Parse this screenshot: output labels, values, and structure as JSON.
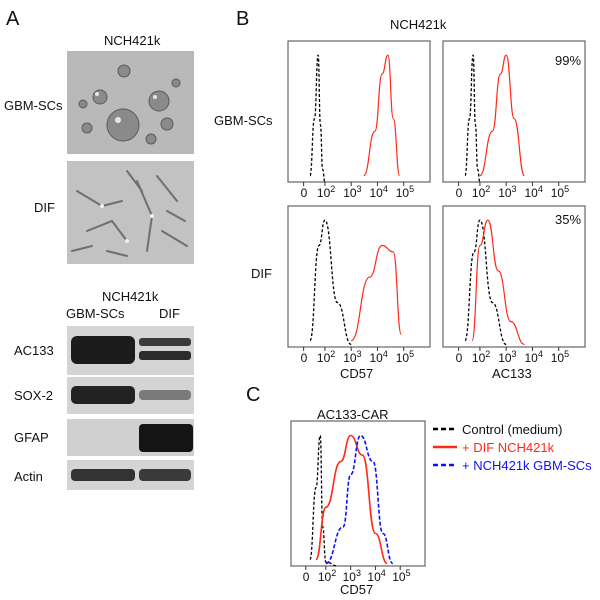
{
  "panels": {
    "a": "A",
    "b": "B",
    "c": "C"
  },
  "panel_a": {
    "title": "NCH421k",
    "rows": [
      "GBM-SCs",
      "DIF"
    ],
    "blot_title": "NCH421k",
    "blot_columns": [
      "GBM-SCs",
      "DIF"
    ],
    "blot_rows": [
      "AC133",
      "SOX-2",
      "GFAP",
      "Actin"
    ]
  },
  "panel_b": {
    "title": "NCH421k",
    "row_labels": [
      "GBM-SCs",
      "DIF"
    ],
    "percents": [
      "99%",
      "35%"
    ],
    "x_labels": [
      "CD57",
      "AC133"
    ],
    "tick_zero": "0",
    "tick_exponents": [
      "2",
      "3",
      "4",
      "5"
    ]
  },
  "panel_c": {
    "title": "AC133-CAR",
    "x_label": "CD57",
    "tick_zero": "0",
    "tick_exponents": [
      "2",
      "3",
      "4",
      "5"
    ],
    "legend": [
      "Control (medium)",
      "+ DIF NCH421k",
      "+ NCH421k GBM-SCs"
    ]
  },
  "colors": {
    "control": "#000000",
    "dif": "#ff2a1a",
    "gbm": "#1010ff",
    "frame": "#666666"
  },
  "chart_data": [
    {
      "type": "area",
      "panel": "B",
      "row": "GBM-SCs",
      "marker": "CD57",
      "x_scale": "biexponential",
      "xlim": [
        0,
        100000
      ],
      "series": [
        {
          "name": "control",
          "x": [
            10,
            20,
            35,
            50,
            70,
            100
          ],
          "y": [
            0.05,
            0.5,
            1.0,
            0.45,
            0.1,
            0.0
          ]
        },
        {
          "name": "GBM-SCs",
          "x": [
            3000,
            8000,
            15000,
            25000,
            40000,
            70000
          ],
          "y": [
            0.05,
            0.4,
            0.85,
            1.0,
            0.5,
            0.05
          ]
        }
      ]
    },
    {
      "type": "area",
      "panel": "B",
      "row": "GBM-SCs",
      "marker": "AC133",
      "percent": "99%",
      "x_scale": "biexponential",
      "xlim": [
        0,
        100000
      ],
      "series": [
        {
          "name": "control",
          "x": [
            10,
            20,
            35,
            50,
            70,
            100
          ],
          "y": [
            0.05,
            0.5,
            1.0,
            0.45,
            0.1,
            0.0
          ]
        },
        {
          "name": "GBM-SCs",
          "x": [
            100,
            300,
            600,
            1000,
            2000,
            5000
          ],
          "y": [
            0.05,
            0.4,
            0.85,
            1.0,
            0.5,
            0.05
          ]
        }
      ]
    },
    {
      "type": "area",
      "panel": "B",
      "row": "DIF",
      "marker": "CD57",
      "x_scale": "biexponential",
      "xlim": [
        0,
        100000
      ],
      "series": [
        {
          "name": "control",
          "x": [
            10,
            40,
            100,
            300,
            1000
          ],
          "y": [
            0.05,
            0.8,
            1.0,
            0.35,
            0.02
          ]
        },
        {
          "name": "DIF",
          "x": [
            1000,
            5000,
            15000,
            40000,
            80000
          ],
          "y": [
            0.05,
            0.55,
            0.8,
            0.75,
            0.1
          ]
        }
      ]
    },
    {
      "type": "area",
      "panel": "B",
      "row": "DIF",
      "marker": "AC133",
      "percent": "35%",
      "x_scale": "biexponential",
      "xlim": [
        0,
        100000
      ],
      "series": [
        {
          "name": "control",
          "x": [
            10,
            40,
            100,
            300,
            1000
          ],
          "y": [
            0.05,
            0.75,
            1.0,
            0.35,
            0.02
          ]
        },
        {
          "name": "DIF",
          "x": [
            30,
            100,
            200,
            500,
            1500,
            5000
          ],
          "y": [
            0.05,
            0.8,
            1.0,
            0.6,
            0.2,
            0.02
          ]
        }
      ]
    },
    {
      "type": "area",
      "panel": "C",
      "marker": "CD57",
      "x_scale": "biexponential",
      "xlim": [
        0,
        100000
      ],
      "series": [
        {
          "name": "Control (medium)",
          "x": [
            5,
            20,
            40,
            60,
            100,
            300
          ],
          "y": [
            0.05,
            0.6,
            1.0,
            0.3,
            0.03,
            0.0
          ]
        },
        {
          "name": "+ DIF NCH421k",
          "x": [
            20,
            100,
            400,
            1000,
            3000,
            10000,
            30000
          ],
          "y": [
            0.05,
            0.45,
            0.8,
            1.0,
            0.85,
            0.25,
            0.02
          ]
        },
        {
          "name": "+ NCH421k GBM-SCs",
          "x": [
            100,
            500,
            1000,
            2500,
            8000,
            20000,
            50000
          ],
          "y": [
            0.02,
            0.3,
            0.7,
            1.0,
            0.8,
            0.25,
            0.02
          ]
        }
      ]
    }
  ]
}
